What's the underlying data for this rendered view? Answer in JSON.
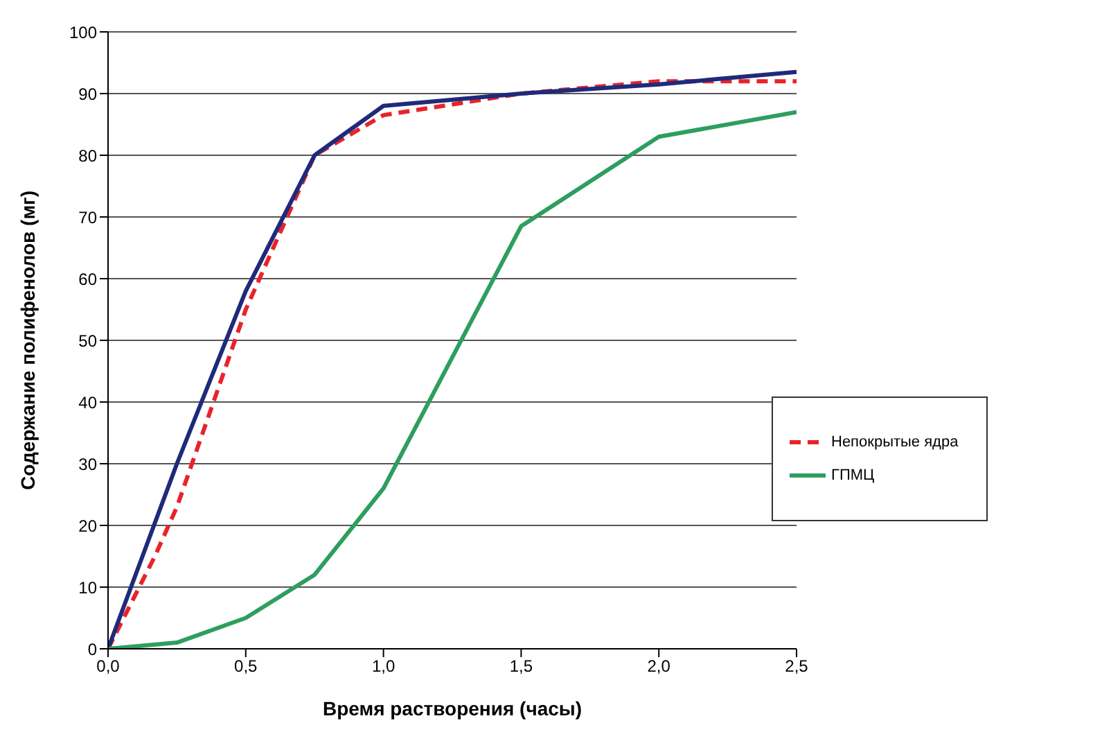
{
  "chart_data": {
    "type": "line",
    "xlabel": "Время растворения  (часы)",
    "ylabel": "Содержание полифенолов (мг)",
    "xlim": [
      0,
      2.5
    ],
    "xticks": [
      {
        "value": 0,
        "label": "0,0"
      },
      {
        "value": 0.5,
        "label": "0,5"
      },
      {
        "value": 1,
        "label": "1,0"
      },
      {
        "value": 1.5,
        "label": "1,5"
      },
      {
        "value": 2,
        "label": "2,0"
      },
      {
        "value": 2.5,
        "label": "2,5"
      }
    ],
    "ylim": [
      0,
      100
    ],
    "yticks": [
      0,
      10,
      20,
      30,
      40,
      50,
      60,
      70,
      80,
      90,
      100
    ],
    "grid": "y",
    "legend": "right",
    "marker": "none",
    "series": [
      {
        "name": "Непокрытые ядра",
        "color": "#e8232a",
        "line_style": "dashed",
        "x": [
          0,
          0.17,
          0.25,
          0.5,
          0.75,
          1,
          1.5,
          2,
          2.5
        ],
        "values": [
          0,
          15,
          23,
          55,
          80,
          86.5,
          90,
          92,
          92
        ]
      },
      {
        "color": "#1f2a7a",
        "line_style": "solid",
        "x": [
          0,
          0.25,
          0.5,
          0.75,
          1,
          1.5,
          2,
          2.5
        ],
        "values": [
          0,
          30,
          58,
          80,
          88,
          90,
          91.5,
          93.5
        ]
      },
      {
        "name": "ГПМЦ",
        "color": "#2e9e5e",
        "line_style": "solid",
        "x": [
          0,
          0.25,
          0.5,
          0.75,
          1,
          1.5,
          2,
          2.5
        ],
        "values": [
          0,
          1,
          5,
          12,
          26,
          68.5,
          83,
          87
        ]
      }
    ]
  }
}
